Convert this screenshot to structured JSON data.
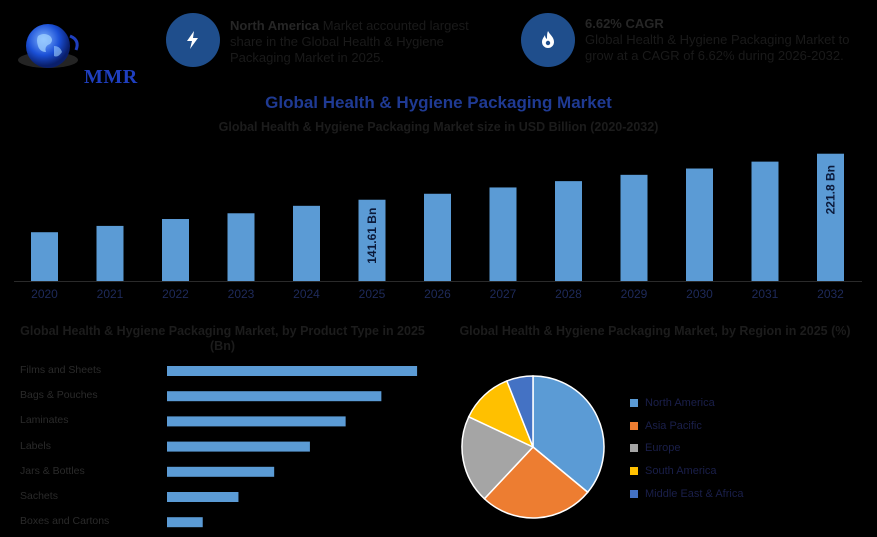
{
  "logo": {
    "text": "MMR",
    "icon": "globe-icon"
  },
  "info_cards": [
    {
      "icon": "lightning-icon",
      "bold": "North America",
      "text": " Market accounted largest share in the Global Health & Hygiene Packaging Market in 2025."
    },
    {
      "icon": "flame-icon",
      "bold": "6.62% CAGR",
      "text": "Global Health & Hygiene Packaging Market to grow at a CAGR of 6.62% during 2026-2032."
    }
  ],
  "title": "Global Health & Hygiene Packaging Market",
  "colors": {
    "bar": "#5b9bd5",
    "icon_bg": "#1f4e8c",
    "title": "#1f3a93"
  },
  "chart_data": [
    {
      "type": "bar",
      "title": "Global Health & Hygiene Packaging Market size in USD Billion (2020-2032)",
      "categories": [
        "2020",
        "2021",
        "2022",
        "2023",
        "2024",
        "2025",
        "2026",
        "2027",
        "2028",
        "2029",
        "2030",
        "2031",
        "2032"
      ],
      "values": [
        85,
        96,
        108,
        118,
        131,
        141.61,
        152,
        163,
        174,
        185,
        196,
        208,
        221.8
      ],
      "data_labels": {
        "5": "141.61 Bn",
        "12": "221.8 Bn"
      },
      "ylim": [
        0,
        230
      ],
      "grid": false
    },
    {
      "type": "bar",
      "orientation": "horizontal",
      "title": "Global Health & Hygiene Packaging Market, by Product Type in 2025 (Bn)",
      "categories": [
        "Films and Sheets",
        "Bags & Pouches",
        "Laminates",
        "Labels",
        "Jars & Bottles",
        "Sachets",
        "Boxes and Cartons"
      ],
      "values": [
        42,
        36,
        30,
        24,
        18,
        12,
        6
      ],
      "xlim": [
        0,
        44
      ]
    },
    {
      "type": "pie",
      "title": "Global Health & Hygiene Packaging Market, by Region in 2025 (%)",
      "legend_position": "right",
      "slices": [
        {
          "label": "North America",
          "value": 36,
          "color": "#5b9bd5"
        },
        {
          "label": "Asia Pacific",
          "value": 26,
          "color": "#ed7d31"
        },
        {
          "label": "Europe",
          "value": 20,
          "color": "#a5a5a5"
        },
        {
          "label": "South America",
          "value": 12,
          "color": "#ffc000"
        },
        {
          "label": "Middle East & Africa",
          "value": 6,
          "color": "#4472c4"
        }
      ]
    }
  ]
}
